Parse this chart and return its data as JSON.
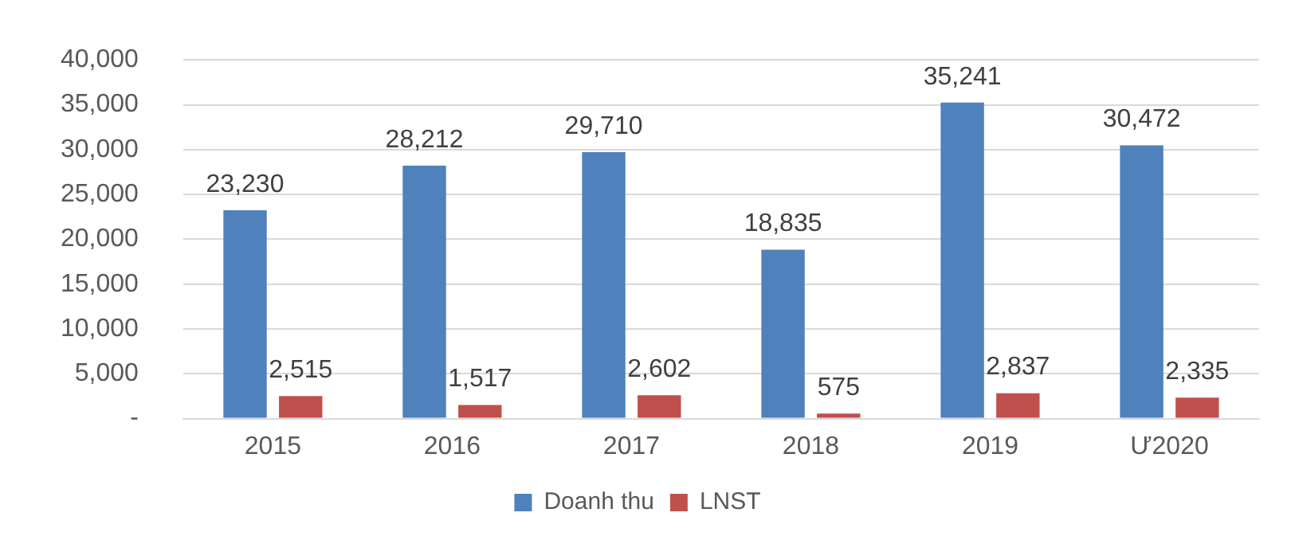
{
  "chart_data": {
    "type": "bar",
    "categories": [
      "2015",
      "2016",
      "2017",
      "2018",
      "2019",
      "Ư2020"
    ],
    "series": [
      {
        "name": "Doanh thu",
        "color": "#4f81bd",
        "values": [
          23230,
          28212,
          29710,
          18835,
          35241,
          30472
        ],
        "value_labels": [
          "23,230",
          "28,212",
          "29,710",
          "18,835",
          "35,241",
          "30,472"
        ]
      },
      {
        "name": "LNST",
        "color": "#c0504d",
        "values": [
          2515,
          1517,
          2602,
          575,
          2837,
          2335
        ],
        "value_labels": [
          "2,515",
          "1,517",
          "2,602",
          "575",
          "2,837",
          "2,335"
        ]
      }
    ],
    "ylim": [
      0,
      40000
    ],
    "yticks": [
      {
        "value": 0,
        "label": "-"
      },
      {
        "value": 5000,
        "label": "5,000"
      },
      {
        "value": 10000,
        "label": "10,000"
      },
      {
        "value": 15000,
        "label": "15,000"
      },
      {
        "value": 20000,
        "label": "20,000"
      },
      {
        "value": 25000,
        "label": "25,000"
      },
      {
        "value": 30000,
        "label": "30,000"
      },
      {
        "value": 35000,
        "label": "35,000"
      },
      {
        "value": 40000,
        "label": "40,000"
      }
    ],
    "grid": "y",
    "legend": "bottom"
  }
}
